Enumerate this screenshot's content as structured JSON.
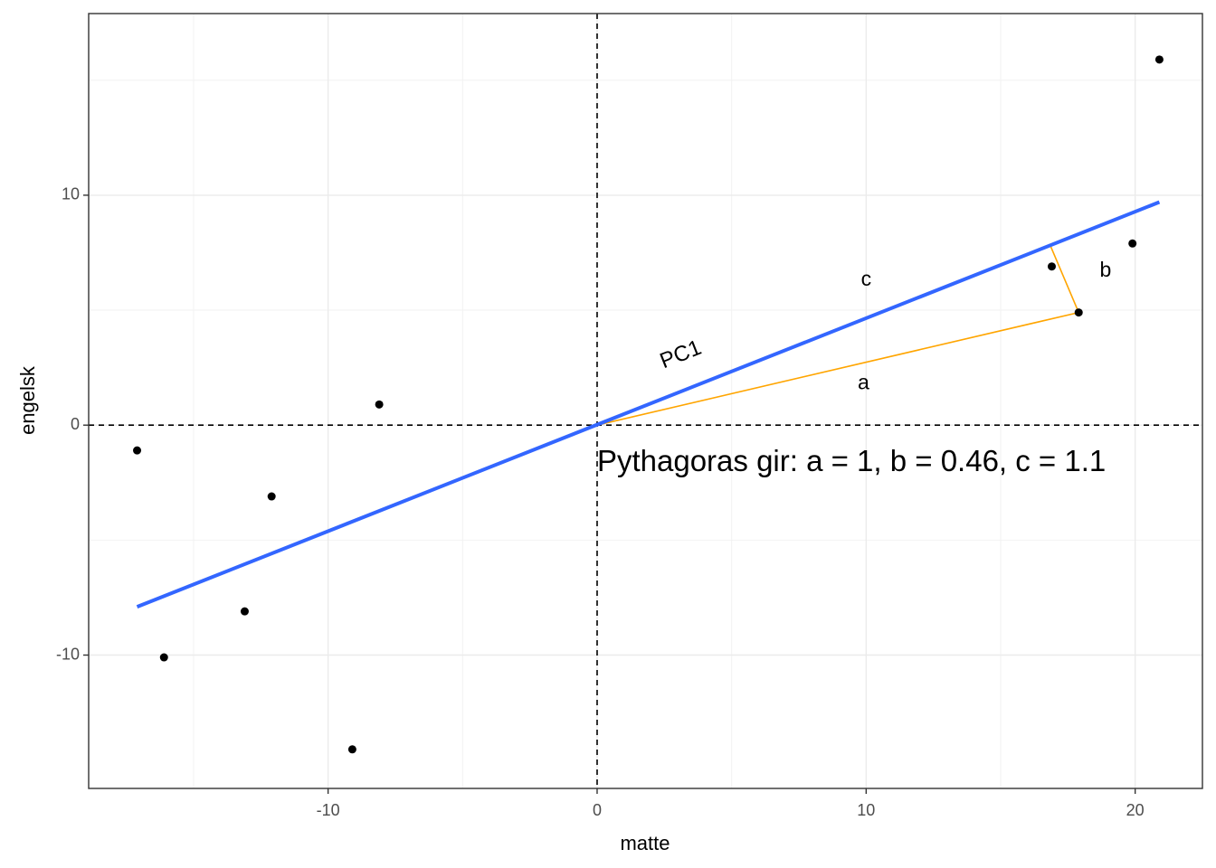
{
  "chart_data": {
    "type": "scatter",
    "title": "",
    "xlabel": "matte",
    "ylabel": "engelsk",
    "xlim": [
      -18.9,
      22.5
    ],
    "ylim": [
      -15.8,
      17.9
    ],
    "x_ticks": [
      -10,
      0,
      10,
      20
    ],
    "y_ticks": [
      -10,
      0,
      10
    ],
    "x_tick_labels": [
      "-10",
      "0",
      "10",
      "20"
    ],
    "y_tick_labels": [
      "-10",
      "0",
      "10"
    ],
    "x_minor": [
      -15,
      -5,
      5,
      15
    ],
    "y_minor": [
      -5,
      5,
      15
    ],
    "grid": true,
    "points": [
      {
        "x": -17.1,
        "y": -1.1
      },
      {
        "x": -16.1,
        "y": -10.1
      },
      {
        "x": -13.1,
        "y": -8.1
      },
      {
        "x": -12.1,
        "y": -3.1
      },
      {
        "x": -9.1,
        "y": -14.1
      },
      {
        "x": -8.1,
        "y": 0.9
      },
      {
        "x": 16.9,
        "y": 6.9
      },
      {
        "x": 17.9,
        "y": 4.9
      },
      {
        "x": 19.9,
        "y": 7.9
      },
      {
        "x": 20.9,
        "y": 15.9
      }
    ],
    "pc1_line": {
      "x": [
        -17.1,
        20.9
      ],
      "y": [
        -7.9,
        9.7
      ],
      "color": "#3366ff",
      "label": "PC1",
      "label_x": 3.2,
      "label_y": 2.8,
      "label_color": "#0000ff"
    },
    "reference_lines": {
      "x": 0,
      "y": 0
    },
    "triangle": {
      "origin": {
        "x": 0,
        "y": 0
      },
      "point": {
        "x": 17.9,
        "y": 4.9
      },
      "projection": {
        "x": 16.85,
        "y": 7.8
      },
      "color": "#ffa500"
    },
    "labels": [
      {
        "text": "a",
        "x": 9.9,
        "y": 1.8
      },
      {
        "text": "b",
        "x": 18.9,
        "y": 6.7
      },
      {
        "text": "c",
        "x": 10.0,
        "y": 6.3
      }
    ],
    "annotation": {
      "text": "Pythagoras gir: a = 1, b = 0.46, c = 1.1",
      "x": 0,
      "y": -1.65
    }
  }
}
